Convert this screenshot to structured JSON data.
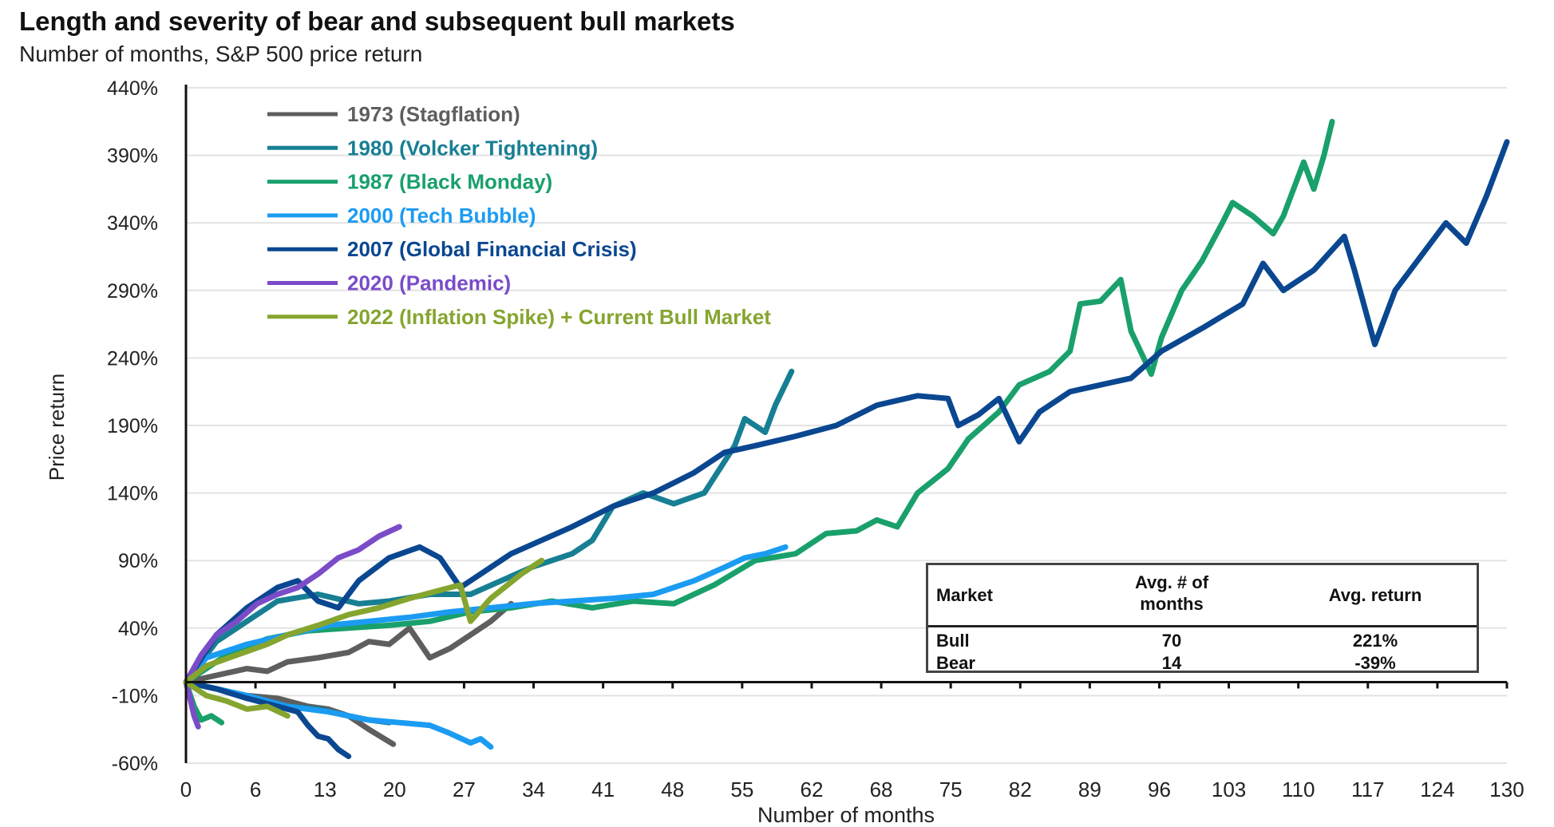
{
  "chart_data": {
    "type": "line",
    "title": "Length and severity of bear and subsequent bull markets",
    "subtitle": "Number of months, S&P 500 price return",
    "xlabel": "Number of months",
    "ylabel": "Price return",
    "xlim": [
      0,
      130
    ],
    "ylim": [
      -60,
      440
    ],
    "x_ticks": [
      "0",
      "6",
      "13",
      "20",
      "27",
      "34",
      "41",
      "48",
      "55",
      "62",
      "68",
      "75",
      "82",
      "89",
      "96",
      "103",
      "110",
      "117",
      "124",
      "130"
    ],
    "y_ticks": [
      "440%",
      "390%",
      "340%",
      "290%",
      "240%",
      "190%",
      "140%",
      "90%",
      "40%",
      "-10%",
      "-60%"
    ],
    "y_tick_values": [
      440,
      390,
      340,
      290,
      240,
      190,
      140,
      90,
      40,
      -10,
      -60
    ],
    "grid": "horizontal",
    "legend_position": "top-left",
    "series": [
      {
        "name": "1973 (Stagflation)",
        "color": "#5e5e5e",
        "bear": [
          [
            0,
            0
          ],
          [
            3,
            -5
          ],
          [
            6,
            -10
          ],
          [
            9,
            -12
          ],
          [
            12,
            -18
          ],
          [
            14,
            -20
          ],
          [
            16,
            -25
          ],
          [
            18,
            -35
          ],
          [
            20.4,
            -46
          ]
        ],
        "bull": [
          [
            0,
            0
          ],
          [
            3,
            5
          ],
          [
            6,
            10
          ],
          [
            8,
            8
          ],
          [
            10,
            15
          ],
          [
            13,
            18
          ],
          [
            16,
            22
          ],
          [
            18,
            30
          ],
          [
            20,
            28
          ],
          [
            22,
            40
          ],
          [
            24,
            18
          ],
          [
            26,
            25
          ],
          [
            28,
            35
          ],
          [
            30,
            45
          ],
          [
            32,
            58
          ]
        ]
      },
      {
        "name": "1980 (Volcker Tightening)",
        "color": "#177f93",
        "bear": [
          [
            0,
            0
          ],
          [
            3,
            -5
          ],
          [
            6,
            -12
          ],
          [
            10,
            -18
          ],
          [
            13,
            -20
          ],
          [
            16,
            -25
          ],
          [
            18,
            -28
          ],
          [
            20,
            -30
          ]
        ],
        "bull": [
          [
            0,
            0
          ],
          [
            3,
            30
          ],
          [
            6,
            45
          ],
          [
            9,
            60
          ],
          [
            13,
            65
          ],
          [
            17,
            58
          ],
          [
            20,
            60
          ],
          [
            24,
            65
          ],
          [
            28,
            65
          ],
          [
            31,
            75
          ],
          [
            34,
            85
          ],
          [
            38,
            95
          ],
          [
            40,
            105
          ],
          [
            42,
            130
          ],
          [
            45,
            140
          ],
          [
            48,
            132
          ],
          [
            51,
            140
          ],
          [
            54,
            175
          ],
          [
            55,
            195
          ],
          [
            57,
            185
          ],
          [
            58,
            205
          ],
          [
            59.6,
            230
          ]
        ]
      },
      {
        "name": "1987 (Black Monday)",
        "color": "#19a06b",
        "bear": [
          [
            0,
            0
          ],
          [
            0.8,
            -18
          ],
          [
            1.5,
            -28
          ],
          [
            2.5,
            -25
          ],
          [
            3.5,
            -30
          ]
        ],
        "bull": [
          [
            0,
            0
          ],
          [
            4,
            20
          ],
          [
            8,
            32
          ],
          [
            12,
            38
          ],
          [
            16,
            40
          ],
          [
            20,
            42
          ],
          [
            24,
            45
          ],
          [
            28,
            52
          ],
          [
            32,
            55
          ],
          [
            36,
            60
          ],
          [
            40,
            55
          ],
          [
            44,
            60
          ],
          [
            48,
            58
          ],
          [
            52,
            72
          ],
          [
            56,
            90
          ],
          [
            60,
            95
          ],
          [
            63,
            110
          ],
          [
            66,
            112
          ],
          [
            68,
            120
          ],
          [
            70,
            115
          ],
          [
            72,
            140
          ],
          [
            75,
            158
          ],
          [
            77,
            180
          ],
          [
            80,
            200
          ],
          [
            82,
            220
          ],
          [
            85,
            230
          ],
          [
            87,
            245
          ],
          [
            88,
            280
          ],
          [
            90,
            282
          ],
          [
            92,
            298
          ],
          [
            93,
            260
          ],
          [
            95,
            228
          ],
          [
            96,
            255
          ],
          [
            98,
            290
          ],
          [
            100,
            312
          ],
          [
            102,
            340
          ],
          [
            103,
            355
          ],
          [
            105,
            345
          ],
          [
            107,
            332
          ],
          [
            108,
            345
          ],
          [
            110,
            385
          ],
          [
            111,
            365
          ],
          [
            112,
            390
          ],
          [
            112.8,
            415
          ]
        ]
      },
      {
        "name": "2000 (Tech Bubble)",
        "color": "#1b9cf2",
        "bear": [
          [
            0,
            0
          ],
          [
            3,
            -5
          ],
          [
            6,
            -10
          ],
          [
            10,
            -18
          ],
          [
            14,
            -22
          ],
          [
            18,
            -28
          ],
          [
            21,
            -30
          ],
          [
            24,
            -32
          ],
          [
            26,
            -38
          ],
          [
            28,
            -45
          ],
          [
            29,
            -42
          ],
          [
            30,
            -48
          ]
        ],
        "bull": [
          [
            0,
            0
          ],
          [
            2,
            18
          ],
          [
            6,
            28
          ],
          [
            10,
            35
          ],
          [
            14,
            42
          ],
          [
            18,
            45
          ],
          [
            22,
            48
          ],
          [
            26,
            52
          ],
          [
            30,
            55
          ],
          [
            34,
            58
          ],
          [
            38,
            60
          ],
          [
            42,
            62
          ],
          [
            46,
            65
          ],
          [
            50,
            75
          ],
          [
            53,
            85
          ],
          [
            55,
            92
          ],
          [
            57,
            95
          ],
          [
            59,
            100
          ]
        ]
      },
      {
        "name": "2007 (Global Financial Crisis)",
        "color": "#0a4790",
        "bear": [
          [
            0,
            0
          ],
          [
            3,
            -5
          ],
          [
            6,
            -12
          ],
          [
            9,
            -18
          ],
          [
            11,
            -22
          ],
          [
            12,
            -32
          ],
          [
            13,
            -40
          ],
          [
            14,
            -42
          ],
          [
            15,
            -50
          ],
          [
            16,
            -55
          ]
        ],
        "bull": [
          [
            0,
            0
          ],
          [
            3,
            35
          ],
          [
            6,
            55
          ],
          [
            9,
            70
          ],
          [
            11,
            75
          ],
          [
            13,
            60
          ],
          [
            15,
            55
          ],
          [
            17,
            75
          ],
          [
            20,
            92
          ],
          [
            23,
            100
          ],
          [
            25,
            92
          ],
          [
            27,
            70
          ],
          [
            29,
            80
          ],
          [
            32,
            95
          ],
          [
            35,
            105
          ],
          [
            38,
            115
          ],
          [
            42,
            130
          ],
          [
            46,
            140
          ],
          [
            50,
            155
          ],
          [
            53,
            170
          ],
          [
            56,
            175
          ],
          [
            60,
            182
          ],
          [
            64,
            190
          ],
          [
            68,
            205
          ],
          [
            72,
            212
          ],
          [
            75,
            210
          ],
          [
            76,
            190
          ],
          [
            78,
            198
          ],
          [
            80,
            210
          ],
          [
            82,
            178
          ],
          [
            84,
            200
          ],
          [
            87,
            215
          ],
          [
            90,
            220
          ],
          [
            93,
            225
          ],
          [
            96,
            245
          ],
          [
            100,
            262
          ],
          [
            104,
            280
          ],
          [
            106,
            310
          ],
          [
            108,
            290
          ],
          [
            111,
            305
          ],
          [
            114,
            330
          ],
          [
            115,
            305
          ],
          [
            117,
            250
          ],
          [
            119,
            290
          ],
          [
            122,
            320
          ],
          [
            124,
            340
          ],
          [
            126,
            325
          ],
          [
            128,
            360
          ],
          [
            130,
            400
          ]
        ]
      },
      {
        "name": "2020 (Pandemic)",
        "color": "#7a4cc8",
        "bear": [
          [
            0,
            0
          ],
          [
            0.4,
            -12
          ],
          [
            0.8,
            -25
          ],
          [
            1.2,
            -33
          ]
        ],
        "bull": [
          [
            0,
            0
          ],
          [
            1.5,
            20
          ],
          [
            3,
            35
          ],
          [
            5,
            45
          ],
          [
            7,
            58
          ],
          [
            9,
            65
          ],
          [
            11,
            70
          ],
          [
            13,
            80
          ],
          [
            15,
            92
          ],
          [
            17,
            98
          ],
          [
            19,
            108
          ],
          [
            21,
            115
          ]
        ]
      },
      {
        "name": "2022 (Inflation Spike) + Current Bull Market",
        "color": "#85a52f",
        "bear": [
          [
            0,
            0
          ],
          [
            2,
            -10
          ],
          [
            4,
            -14
          ],
          [
            6,
            -20
          ],
          [
            8,
            -18
          ],
          [
            10,
            -25
          ]
        ],
        "bull": [
          [
            0,
            0
          ],
          [
            2,
            12
          ],
          [
            5,
            20
          ],
          [
            8,
            28
          ],
          [
            10,
            35
          ],
          [
            13,
            42
          ],
          [
            16,
            50
          ],
          [
            19,
            55
          ],
          [
            22,
            62
          ],
          [
            25,
            68
          ],
          [
            27,
            72
          ],
          [
            28,
            45
          ],
          [
            30,
            62
          ],
          [
            33,
            80
          ],
          [
            35,
            90
          ]
        ]
      }
    ]
  },
  "table": {
    "headers": [
      "Market",
      "Avg. # of months",
      "Avg. return"
    ],
    "rows": [
      {
        "market": "Bull",
        "months": "70",
        "return": "221%"
      },
      {
        "market": "Bear",
        "months": "14",
        "return": "-39%"
      }
    ]
  }
}
